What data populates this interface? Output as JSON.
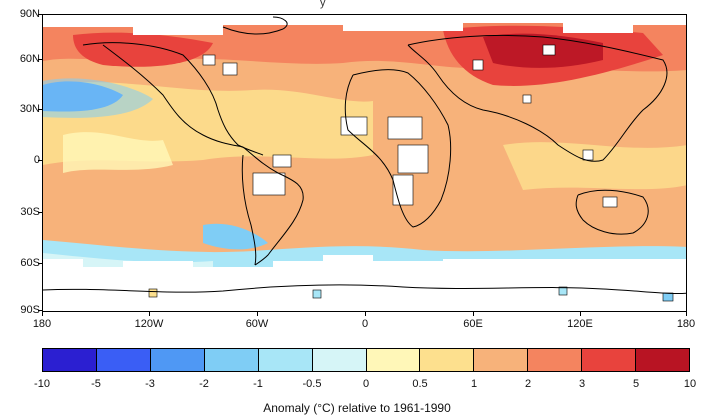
{
  "title_fragment": "y",
  "map": {
    "projection": "equirectangular",
    "lat_ticks": [
      "90N",
      "60N",
      "30N",
      "0",
      "30S",
      "60S",
      "90S"
    ],
    "lon_ticks": [
      "180",
      "120W",
      "60W",
      "0",
      "60E",
      "120E",
      "180"
    ],
    "no_data_color": "#ffffff",
    "coastline_color": "#000000"
  },
  "colorbar": {
    "colors": [
      "#2b1fd1",
      "#3a5ef5",
      "#4f98f4",
      "#7fcdf5",
      "#a8e6f7",
      "#d6f5f7",
      "#fff7b8",
      "#fde08e",
      "#f7b27a",
      "#f4845f",
      "#e8433d",
      "#b81423"
    ],
    "labels": [
      "-10",
      "-5",
      "-3",
      "-2",
      "-1",
      "-0.5",
      "0",
      "0.5",
      "1",
      "2",
      "3",
      "5",
      "10"
    ]
  },
  "caption": "Anomaly (°C) relative to 1961-1990"
}
